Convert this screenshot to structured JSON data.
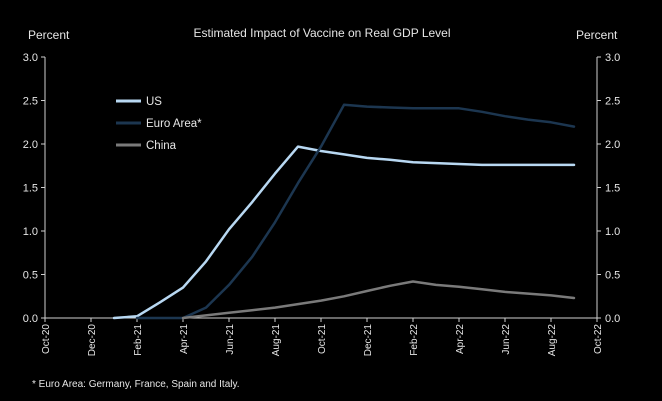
{
  "chart_data": {
    "type": "line",
    "title": "Estimated Impact of Vaccine on Real GDP Level",
    "ylabel_left": "Percent",
    "ylabel_right": "Percent",
    "xlabel": "",
    "ylim": [
      0,
      3.0
    ],
    "y_ticks": [
      "0.0",
      "0.5",
      "1.0",
      "1.5",
      "2.0",
      "2.5",
      "3.0"
    ],
    "x_range_months": [
      "Oct-20",
      "Oct-22"
    ],
    "x_ticks": [
      "Oct-20",
      "Dec-20",
      "Feb-21",
      "Apr-21",
      "Jun-21",
      "Aug-21",
      "Oct-21",
      "Dec-21",
      "Feb-22",
      "Apr-22",
      "Jun-22",
      "Aug-22",
      "Oct-22"
    ],
    "grid": false,
    "legend_placement": "upper-left",
    "series": [
      {
        "name": "US",
        "color": "#b8d8f2",
        "x": [
          "Jan-21",
          "Feb-21",
          "Mar-21",
          "Apr-21",
          "May-21",
          "Jun-21",
          "Jul-21",
          "Aug-21",
          "Sep-21",
          "Oct-21",
          "Nov-21",
          "Dec-21",
          "Jan-22",
          "Feb-22",
          "Mar-22",
          "Apr-22",
          "May-22",
          "Jun-22",
          "Jul-22",
          "Aug-22",
          "Sep-22"
        ],
        "values": [
          0.0,
          0.02,
          0.18,
          0.35,
          0.65,
          1.02,
          1.33,
          1.66,
          1.97,
          1.92,
          1.88,
          1.84,
          1.82,
          1.79,
          1.78,
          1.77,
          1.76,
          1.76,
          1.76,
          1.76,
          1.76
        ]
      },
      {
        "name": "Euro Area*",
        "color": "#1c3650",
        "x": [
          "Feb-21",
          "Mar-21",
          "Apr-21",
          "May-21",
          "Jun-21",
          "Jul-21",
          "Aug-21",
          "Sep-21",
          "Oct-21",
          "Nov-21",
          "Dec-21",
          "Jan-22",
          "Feb-22",
          "Mar-22",
          "Apr-22",
          "May-22",
          "Jun-22",
          "Jul-22",
          "Aug-22",
          "Sep-22"
        ],
        "values": [
          0.0,
          0.0,
          0.0,
          0.12,
          0.38,
          0.7,
          1.1,
          1.55,
          1.97,
          2.45,
          2.43,
          2.42,
          2.41,
          2.41,
          2.41,
          2.37,
          2.32,
          2.28,
          2.25,
          2.2
        ]
      },
      {
        "name": "China",
        "color": "#7a7a7a",
        "x": [
          "Apr-21",
          "May-21",
          "Jun-21",
          "Jul-21",
          "Aug-21",
          "Sep-21",
          "Oct-21",
          "Nov-21",
          "Dec-21",
          "Jan-22",
          "Feb-22",
          "Mar-22",
          "Apr-22",
          "May-22",
          "Jun-22",
          "Jul-22",
          "Aug-22",
          "Sep-22"
        ],
        "values": [
          0.0,
          0.03,
          0.06,
          0.09,
          0.12,
          0.16,
          0.2,
          0.25,
          0.31,
          0.37,
          0.42,
          0.38,
          0.36,
          0.33,
          0.3,
          0.28,
          0.26,
          0.23
        ]
      }
    ],
    "footnote": "* Euro Area: Germany, France, Spain and Italy."
  }
}
